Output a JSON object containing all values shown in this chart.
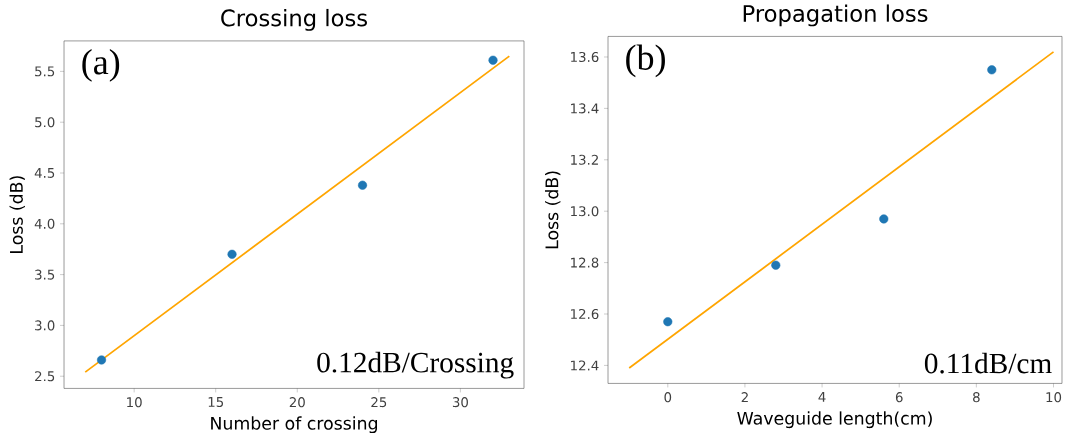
{
  "chart_data": [
    {
      "type": "scatter",
      "marker": "circle",
      "title": "Crossing loss",
      "xlabel": "Number of crossing",
      "ylabel": "Loss (dB)",
      "annotations": [
        "(a)",
        "0.12dB/Crossing"
      ],
      "xlim": [
        5.7,
        33.9
      ],
      "ylim": [
        2.38,
        5.8
      ],
      "xticks": [
        10,
        15,
        20,
        25,
        30
      ],
      "yticks": [
        2.5,
        {
          "value": 3,
          "label": "3.0"
        },
        3.5,
        {
          "value": 4,
          "label": "4.0"
        },
        4.5,
        {
          "value": 5,
          "label": "5.0"
        },
        5.5
      ],
      "series": [
        {
          "color": "#1f77b4",
          "x": [
            8,
            16,
            24,
            32
          ],
          "values": [
            2.66,
            3.7,
            4.38,
            5.61
          ]
        },
        {
          "type": "line",
          "marker": "none",
          "color": "#ffa500",
          "x": [
            7,
            33
          ],
          "values": [
            2.54,
            5.65
          ]
        }
      ]
    },
    {
      "type": "scatter",
      "marker": "circle",
      "title": "Propagation loss",
      "xlabel": "Waveguide length(cm)",
      "ylabel": "Loss (dB)",
      "annotations": [
        "(b)",
        "0.11dB/cm"
      ],
      "xlim": [
        -1.55,
        10.22
      ],
      "ylim": [
        12.33,
        13.68
      ],
      "xticks": [
        0,
        2,
        4,
        6,
        8,
        10
      ],
      "yticks": [
        12.4,
        12.6,
        12.8,
        {
          "value": 13,
          "label": "13.0"
        },
        13.2,
        13.4,
        13.6
      ],
      "series": [
        {
          "color": "#1f77b4",
          "x": [
            0,
            2.8,
            5.6,
            8.4
          ],
          "values": [
            12.57,
            12.79,
            12.97,
            13.55
          ]
        },
        {
          "type": "line",
          "marker": "none",
          "color": "#ffa500",
          "x": [
            -1,
            10
          ],
          "values": [
            12.39,
            13.62
          ]
        }
      ]
    }
  ]
}
